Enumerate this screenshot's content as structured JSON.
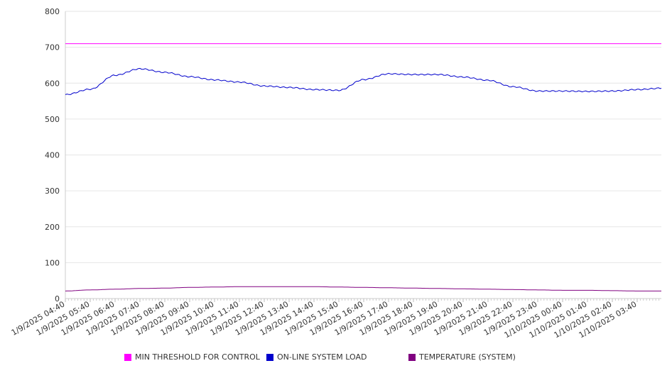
{
  "chart_data": {
    "type": "line",
    "ylim": [
      0,
      800
    ],
    "y_ticks": [
      0,
      100,
      200,
      300,
      400,
      500,
      600,
      700,
      800
    ],
    "x_tick_labels": [
      "1/9/2025 04:40",
      "1/9/2025 05:40",
      "1/9/2025 06:40",
      "1/9/2025 07:40",
      "1/9/2025 08:40",
      "1/9/2025 09:40",
      "1/9/2025 10:40",
      "1/9/2025 11:40",
      "1/9/2025 12:40",
      "1/9/2025 13:40",
      "1/9/2025 14:40",
      "1/9/2025 15:40",
      "1/9/2025 16:40",
      "1/9/2025 17:40",
      "1/9/2025 18:40",
      "1/9/2025 19:40",
      "1/9/2025 20:40",
      "1/9/2025 21:40",
      "1/9/2025 22:40",
      "1/9/2025 23:40",
      "1/10/2025 00:40",
      "1/10/2025 01:40",
      "1/10/2025 02:40",
      "1/10/2025 03:40"
    ],
    "x": [
      "1/9/2025 04:40",
      "1/9/2025 05:40",
      "1/9/2025 06:40",
      "1/9/2025 07:40",
      "1/9/2025 08:40",
      "1/9/2025 09:40",
      "1/9/2025 10:40",
      "1/9/2025 11:40",
      "1/9/2025 12:40",
      "1/9/2025 13:40",
      "1/9/2025 14:40",
      "1/9/2025 15:40",
      "1/9/2025 16:40",
      "1/9/2025 17:40",
      "1/9/2025 18:40",
      "1/9/2025 19:40",
      "1/9/2025 20:40",
      "1/9/2025 21:40",
      "1/9/2025 22:40",
      "1/9/2025 23:40",
      "1/10/2025 00:40",
      "1/10/2025 01:40",
      "1/10/2025 02:40",
      "1/10/2025 03:40",
      "1/10/2025 04:40"
    ],
    "series": [
      {
        "name": "MIN THRESHOLD FOR CONTROL",
        "color": "#ff00ff",
        "values": [
          710,
          710,
          710,
          710,
          710,
          710,
          710,
          710,
          710,
          710,
          710,
          710,
          710,
          710,
          710,
          710,
          710,
          710,
          710,
          710,
          710,
          710,
          710,
          710,
          710
        ]
      },
      {
        "name": "ON-LINE SYSTEM LOAD",
        "color": "#0000cc",
        "values": [
          568,
          583,
          622,
          640,
          630,
          618,
          609,
          603,
          592,
          588,
          582,
          580,
          610,
          626,
          624,
          624,
          617,
          608,
          590,
          578,
          578,
          577,
          578,
          582,
          586
        ]
      },
      {
        "name": "TEMPERATURE (SYSTEM)",
        "color": "#800080",
        "values": [
          21,
          24,
          26,
          28,
          29,
          31,
          32,
          33,
          33,
          33,
          33,
          32,
          31,
          30,
          29,
          28,
          27,
          26,
          25,
          24,
          23,
          23,
          22,
          21,
          21
        ]
      }
    ],
    "grid": true,
    "legend_position": "bottom"
  }
}
